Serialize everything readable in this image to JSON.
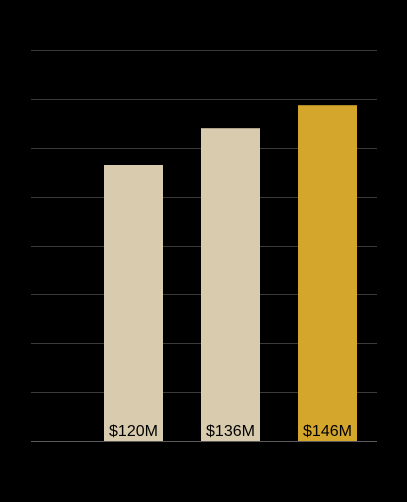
{
  "chart_data": {
    "type": "bar",
    "categories": [
      "",
      "",
      ""
    ],
    "values": [
      120,
      136,
      146
    ],
    "value_labels": [
      "$120M",
      "$136M",
      "$146M"
    ],
    "title": "",
    "xlabel": "",
    "ylabel": "",
    "ylim": [
      0,
      170
    ],
    "grid": true,
    "legend": "none",
    "bar_colors": [
      "#d9cbad",
      "#d9cbad",
      "#d4a72c"
    ],
    "background_color": "#000000",
    "gridline_color": "#3a3a3a",
    "axis_color": "#5a5a5a",
    "label_color": "#000000"
  }
}
